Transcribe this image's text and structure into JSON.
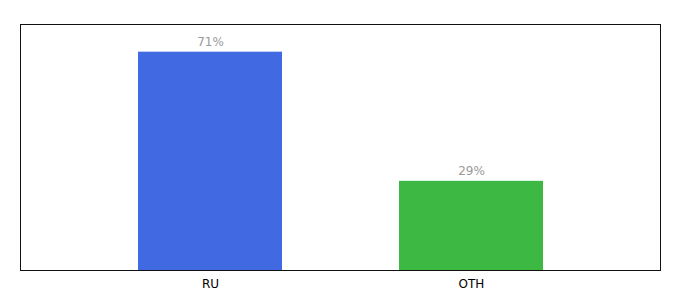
{
  "chart_data": {
    "type": "bar",
    "categories": [
      "RU",
      "OTH"
    ],
    "values": [
      71,
      29
    ],
    "colors": [
      "#4169E1",
      "#3CB843"
    ],
    "data_labels": true,
    "value_labels": [
      "71%",
      "29%"
    ],
    "ylim": [
      0,
      80
    ],
    "yticks": [],
    "tick_labels": "x",
    "grid": false
  }
}
